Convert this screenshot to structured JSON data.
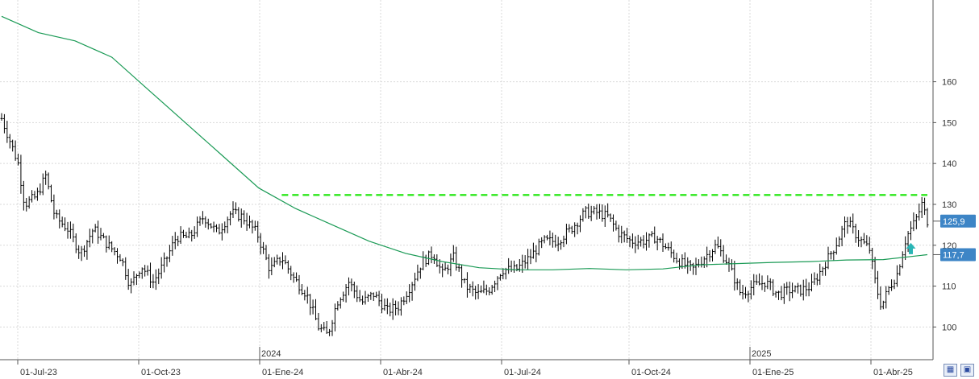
{
  "chart_data": {
    "type": "ohlc",
    "title": "",
    "xlabel": "",
    "ylabel": "",
    "ylim": [
      92,
      180
    ],
    "y_ticks": [
      100,
      110,
      120,
      130,
      140,
      150,
      160
    ],
    "x_labels": [
      "01-Jul-23",
      "01-Oct-23",
      "01-Ene-24",
      "01-Abr-24",
      "01-Jul-24",
      "01-Oct-24",
      "01-Ene-25",
      "01-Abr-25"
    ],
    "year_labels": [
      "2024",
      "2025"
    ],
    "price_path": [
      {
        "i": 0,
        "p": 151
      },
      {
        "i": 10,
        "p": 145
      },
      {
        "i": 18,
        "p": 140
      },
      {
        "i": 25,
        "p": 130
      },
      {
        "i": 38,
        "p": 132
      },
      {
        "i": 48,
        "p": 137
      },
      {
        "i": 58,
        "p": 127
      },
      {
        "i": 72,
        "p": 124
      },
      {
        "i": 86,
        "p": 118
      },
      {
        "i": 100,
        "p": 124
      },
      {
        "i": 116,
        "p": 120
      },
      {
        "i": 130,
        "p": 117
      },
      {
        "i": 140,
        "p": 110
      },
      {
        "i": 152,
        "p": 115
      },
      {
        "i": 165,
        "p": 111
      },
      {
        "i": 178,
        "p": 116
      },
      {
        "i": 190,
        "p": 122
      },
      {
        "i": 205,
        "p": 122
      },
      {
        "i": 220,
        "p": 127
      },
      {
        "i": 235,
        "p": 123
      },
      {
        "i": 250,
        "p": 128
      },
      {
        "i": 262,
        "p": 127
      },
      {
        "i": 278,
        "p": 123
      },
      {
        "i": 292,
        "p": 114
      },
      {
        "i": 305,
        "p": 117
      },
      {
        "i": 318,
        "p": 112
      },
      {
        "i": 332,
        "p": 108
      },
      {
        "i": 345,
        "p": 100
      },
      {
        "i": 355,
        "p": 98
      },
      {
        "i": 365,
        "p": 106
      },
      {
        "i": 378,
        "p": 111
      },
      {
        "i": 392,
        "p": 106
      },
      {
        "i": 405,
        "p": 108
      },
      {
        "i": 420,
        "p": 104
      },
      {
        "i": 432,
        "p": 105
      },
      {
        "i": 445,
        "p": 110
      },
      {
        "i": 458,
        "p": 116
      },
      {
        "i": 470,
        "p": 118
      },
      {
        "i": 480,
        "p": 113
      },
      {
        "i": 492,
        "p": 117
      },
      {
        "i": 505,
        "p": 110
      },
      {
        "i": 518,
        "p": 108
      },
      {
        "i": 530,
        "p": 109
      },
      {
        "i": 545,
        "p": 114
      },
      {
        "i": 560,
        "p": 114
      },
      {
        "i": 575,
        "p": 117
      },
      {
        "i": 590,
        "p": 121
      },
      {
        "i": 605,
        "p": 121
      },
      {
        "i": 620,
        "p": 124
      },
      {
        "i": 635,
        "p": 128
      },
      {
        "i": 648,
        "p": 128
      },
      {
        "i": 660,
        "p": 127
      },
      {
        "i": 672,
        "p": 123
      },
      {
        "i": 685,
        "p": 121
      },
      {
        "i": 698,
        "p": 121
      },
      {
        "i": 712,
        "p": 122
      },
      {
        "i": 725,
        "p": 119
      },
      {
        "i": 738,
        "p": 116
      },
      {
        "i": 752,
        "p": 114
      },
      {
        "i": 765,
        "p": 117
      },
      {
        "i": 778,
        "p": 120
      },
      {
        "i": 790,
        "p": 116
      },
      {
        "i": 805,
        "p": 108
      },
      {
        "i": 818,
        "p": 110
      },
      {
        "i": 832,
        "p": 111
      },
      {
        "i": 845,
        "p": 108
      },
      {
        "i": 858,
        "p": 109
      },
      {
        "i": 870,
        "p": 109
      },
      {
        "i": 882,
        "p": 110
      },
      {
        "i": 895,
        "p": 115
      },
      {
        "i": 908,
        "p": 120
      },
      {
        "i": 920,
        "p": 126
      },
      {
        "i": 932,
        "p": 122
      },
      {
        "i": 945,
        "p": 119
      },
      {
        "i": 952,
        "p": 110
      },
      {
        "i": 958,
        "p": 105
      },
      {
        "i": 965,
        "p": 109
      },
      {
        "i": 975,
        "p": 113
      },
      {
        "i": 985,
        "p": 122
      },
      {
        "i": 995,
        "p": 126
      },
      {
        "i": 1002,
        "p": 130
      },
      {
        "i": 1008,
        "p": 126
      }
    ],
    "moving_average": [
      {
        "i": 0,
        "p": 176
      },
      {
        "i": 40,
        "p": 172
      },
      {
        "i": 80,
        "p": 170
      },
      {
        "i": 120,
        "p": 166
      },
      {
        "i": 160,
        "p": 158
      },
      {
        "i": 200,
        "p": 150
      },
      {
        "i": 240,
        "p": 142
      },
      {
        "i": 280,
        "p": 134
      },
      {
        "i": 320,
        "p": 129
      },
      {
        "i": 360,
        "p": 125
      },
      {
        "i": 400,
        "p": 121
      },
      {
        "i": 440,
        "p": 118
      },
      {
        "i": 480,
        "p": 116
      },
      {
        "i": 520,
        "p": 114.5
      },
      {
        "i": 560,
        "p": 114
      },
      {
        "i": 600,
        "p": 114
      },
      {
        "i": 640,
        "p": 114.3
      },
      {
        "i": 680,
        "p": 114
      },
      {
        "i": 720,
        "p": 114.2
      },
      {
        "i": 760,
        "p": 115.2
      },
      {
        "i": 800,
        "p": 115.5
      },
      {
        "i": 840,
        "p": 115.8
      },
      {
        "i": 880,
        "p": 116
      },
      {
        "i": 920,
        "p": 116.4
      },
      {
        "i": 960,
        "p": 116.5
      },
      {
        "i": 1008,
        "p": 117.7
      }
    ],
    "resistance_level": 132.3,
    "last_price_label": "125,9",
    "ma_value_label": "117,7",
    "colors": {
      "bars": "#000000",
      "moving_average": "#1a9a55",
      "resistance": "#2ee81c",
      "price_tag": "#3d85c6",
      "arrow": "#2ab5b5",
      "grid": "#d9d9d9"
    }
  },
  "toolbar": {
    "icons": [
      "grid-toggle-icon",
      "save-icon"
    ]
  }
}
